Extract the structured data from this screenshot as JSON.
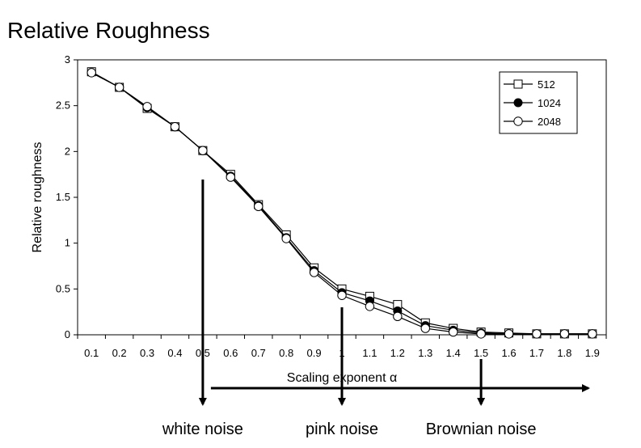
{
  "slide": {
    "title": "Relative Roughness"
  },
  "chart_data": {
    "type": "line",
    "title": "",
    "xlabel": "Scaling exponent α",
    "ylabel": "Relative roughness",
    "xlim": [
      0.05,
      1.95
    ],
    "ylim": [
      0,
      3
    ],
    "x": [
      0.1,
      0.2,
      0.3,
      0.4,
      0.5,
      0.6,
      0.7,
      0.8,
      0.9,
      1.0,
      1.1,
      1.2,
      1.3,
      1.4,
      1.5,
      1.6,
      1.7,
      1.8,
      1.9
    ],
    "x_tick_labels": [
      "0.1",
      "0.2",
      "0.3",
      "0.4",
      "0.5",
      "0.6",
      "0.7",
      "0.8",
      "0.9",
      "1",
      "1.1",
      "1.2",
      "1.3",
      "1.4",
      "1.5",
      "1.6",
      "1.7",
      "1.8",
      "1.9"
    ],
    "y_ticks": [
      0,
      0.5,
      1,
      1.5,
      2,
      2.5,
      3
    ],
    "y_tick_labels": [
      "0",
      "0.5",
      "1",
      "1.5",
      "2",
      "2.5",
      "3"
    ],
    "grid": false,
    "legend_position": "top-right",
    "series": [
      {
        "name": "512",
        "marker": "open-square",
        "values": [
          2.87,
          2.7,
          2.47,
          2.27,
          2.01,
          1.75,
          1.42,
          1.09,
          0.73,
          0.5,
          0.42,
          0.33,
          0.13,
          0.07,
          0.03,
          0.02,
          0.01,
          0.01,
          0.01
        ]
      },
      {
        "name": "1024",
        "marker": "filled-circle",
        "values": [
          2.86,
          2.7,
          2.48,
          2.27,
          2.01,
          1.73,
          1.41,
          1.06,
          0.7,
          0.46,
          0.37,
          0.26,
          0.1,
          0.05,
          0.02,
          0.01,
          0.01,
          0.01,
          0.01
        ]
      },
      {
        "name": "2048",
        "marker": "open-circle",
        "values": [
          2.86,
          2.7,
          2.49,
          2.27,
          2.01,
          1.72,
          1.4,
          1.05,
          0.68,
          0.43,
          0.31,
          0.2,
          0.07,
          0.03,
          0.01,
          0.01,
          0.01,
          0.01,
          0.01
        ]
      }
    ],
    "annotations": [
      {
        "text": "white noise",
        "x": 0.5
      },
      {
        "text": "pink noise",
        "x": 1.0
      },
      {
        "text": "Brownian noise",
        "x": 1.5
      }
    ]
  }
}
